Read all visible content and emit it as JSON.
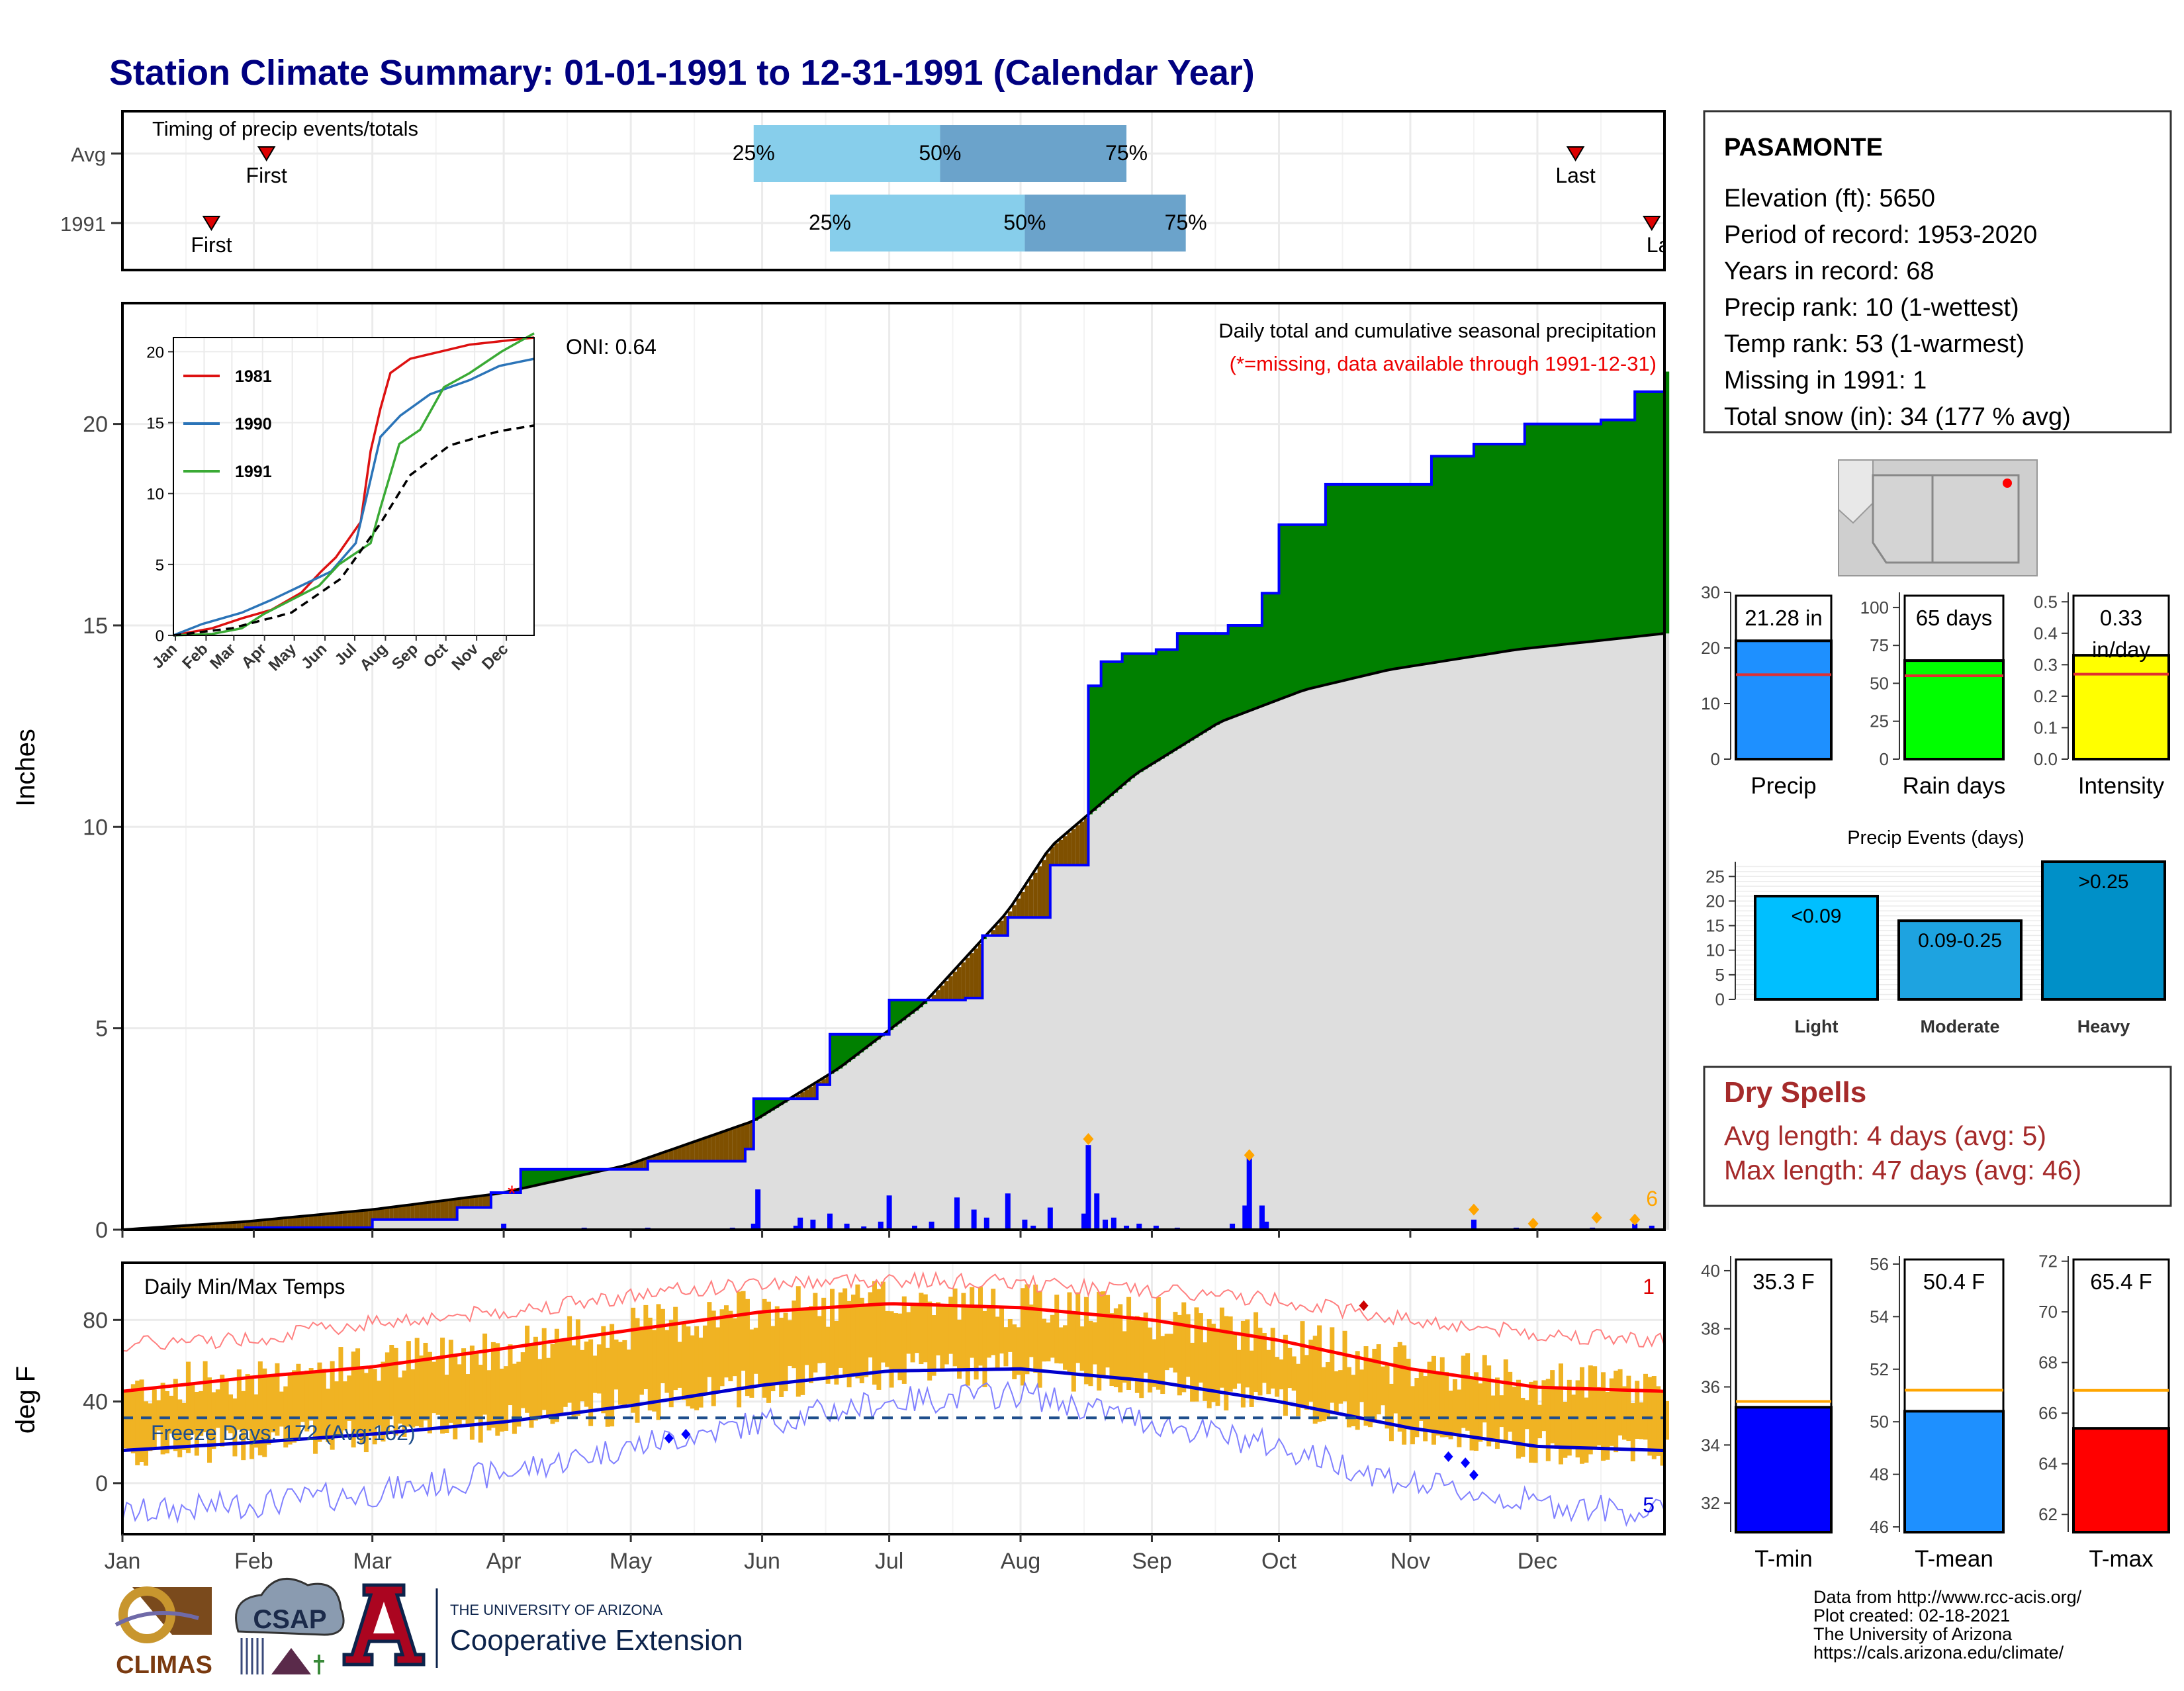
{
  "title": "Station Climate Summary: 01-01-1991 to 12-31-1991 (Calendar Year)",
  "timing": {
    "label": "Timing of precip events/totals",
    "rows": [
      {
        "name": "Avg",
        "first_doy": 35,
        "last_doy": 344,
        "q25_doy": 150,
        "q50_doy": 194,
        "q75_doy": 238
      },
      {
        "name": "1991",
        "first_doy": 22,
        "last_doy": 362,
        "q25_doy": 168,
        "q50_doy": 214,
        "q75_doy": 252
      }
    ],
    "pct_labels": [
      "25%",
      "50%",
      "75%"
    ],
    "first_label": "First",
    "last_label": "Last",
    "last_label_clipped": "La"
  },
  "station": {
    "name": "PASAMONTE",
    "lines": [
      "Elevation (ft): 5650",
      "Period of record: 1953-2020",
      "Years in record: 68",
      "Precip rank: 10 (1-wettest)",
      "Temp rank: 53 (1-warmest)",
      "Missing in 1991: 1",
      "Total snow (in): 34 (177 % avg)"
    ]
  },
  "main_panel": {
    "ylabel": "Inches",
    "title": "Daily total and cumulative seasonal precipitation",
    "subtitle": "(*=missing, data available through 1991-12-31)",
    "oni": "ONI: 0.64",
    "right_count": "6",
    "missing_marker": "*"
  },
  "temp_panel": {
    "ylabel": "deg F",
    "title": "Daily Min/Max Temps",
    "freeze": "Freeze Days: 172 (Avg:162)",
    "count_hi": "1",
    "count_lo": "5"
  },
  "months": [
    "Jan",
    "Feb",
    "Mar",
    "Apr",
    "May",
    "Jun",
    "Jul",
    "Aug",
    "Sep",
    "Oct",
    "Nov",
    "Dec"
  ],
  "dry_spells": {
    "title": "Dry Spells",
    "avg": "Avg length: 4 days (avg: 5)",
    "max": "Max length: 47 days (avg: 46)"
  },
  "precip_events_title": "Precip Events (days)",
  "footer": {
    "lines": [
      "Data from http://www.rcc-acis.org/",
      "Plot created: 02-18-2021",
      "The University of Arizona",
      "https://cals.arizona.edu/climate/"
    ],
    "climas": "CLIMAS",
    "csap": "CSAP",
    "ua_small": "THE UNIVERSITY OF ARIZONA",
    "ua_big": "Cooperative Extension",
    "ua_letter": "A"
  },
  "colors": {
    "title": "#000080",
    "green": "#008000",
    "brown": "#7f5000",
    "gray_fill": "#dedede",
    "blue_bar": "#0000ff",
    "temp_bar": "#f0b323",
    "tmax_line": "#ff0000",
    "tmin_line": "#0000cc",
    "q_light": "#87ceeb",
    "q_dark": "#6ba3cb",
    "dry_text": "#a52a2a",
    "missing": "#ff0000"
  },
  "chart_data": [
    {
      "id": "cumulative_precip",
      "type": "area",
      "title": "Daily total and cumulative seasonal precipitation",
      "ylabel": "Inches",
      "ylim": [
        0,
        23
      ],
      "yticks": [
        0,
        5,
        10,
        15,
        20
      ],
      "x_categories": [
        "Jan",
        "Feb",
        "Mar",
        "Apr",
        "May",
        "Jun",
        "Jul",
        "Aug",
        "Sep",
        "Oct",
        "Nov",
        "Dec"
      ],
      "cumulative_1991": [
        [
          1,
          0.0
        ],
        [
          30,
          0.05
        ],
        [
          60,
          0.25
        ],
        [
          80,
          0.55
        ],
        [
          88,
          0.92
        ],
        [
          95,
          1.5
        ],
        [
          125,
          1.7
        ],
        [
          148,
          2.0
        ],
        [
          150,
          3.25
        ],
        [
          165,
          3.6
        ],
        [
          168,
          4.85
        ],
        [
          182,
          5.7
        ],
        [
          200,
          5.75
        ],
        [
          204,
          7.3
        ],
        [
          210,
          7.75
        ],
        [
          220,
          9.05
        ],
        [
          228,
          9.05
        ],
        [
          229,
          13.5
        ],
        [
          232,
          14.1
        ],
        [
          237,
          14.3
        ],
        [
          245,
          14.4
        ],
        [
          250,
          14.8
        ],
        [
          262,
          15.0
        ],
        [
          270,
          15.8
        ],
        [
          274,
          17.5
        ],
        [
          285,
          18.5
        ],
        [
          300,
          18.5
        ],
        [
          310,
          19.2
        ],
        [
          320,
          19.5
        ],
        [
          332,
          20.0
        ],
        [
          340,
          20.0
        ],
        [
          350,
          20.1
        ],
        [
          358,
          20.8
        ],
        [
          365,
          21.3
        ]
      ],
      "avg_cumulative": [
        [
          1,
          0.0
        ],
        [
          30,
          0.2
        ],
        [
          60,
          0.5
        ],
        [
          90,
          0.9
        ],
        [
          120,
          1.6
        ],
        [
          150,
          2.7
        ],
        [
          170,
          4.0
        ],
        [
          190,
          5.6
        ],
        [
          210,
          7.9
        ],
        [
          220,
          9.5
        ],
        [
          240,
          11.3
        ],
        [
          260,
          12.6
        ],
        [
          280,
          13.4
        ],
        [
          300,
          13.9
        ],
        [
          330,
          14.4
        ],
        [
          365,
          14.8
        ]
      ],
      "daily_precip": [
        [
          91,
          0.15
        ],
        [
          110,
          0.05
        ],
        [
          125,
          0.05
        ],
        [
          145,
          0.05
        ],
        [
          150,
          0.15
        ],
        [
          151,
          1.0
        ],
        [
          160,
          0.1
        ],
        [
          161,
          0.3
        ],
        [
          164,
          0.25
        ],
        [
          168,
          0.4
        ],
        [
          172,
          0.15
        ],
        [
          176,
          0.08
        ],
        [
          180,
          0.2
        ],
        [
          182,
          0.85
        ],
        [
          188,
          0.1
        ],
        [
          192,
          0.2
        ],
        [
          198,
          0.8
        ],
        [
          202,
          0.5
        ],
        [
          205,
          0.3
        ],
        [
          210,
          0.9
        ],
        [
          214,
          0.25
        ],
        [
          216,
          0.1
        ],
        [
          220,
          0.55
        ],
        [
          228,
          0.4
        ],
        [
          229,
          2.1
        ],
        [
          231,
          0.9
        ],
        [
          233,
          0.25
        ],
        [
          235,
          0.3
        ],
        [
          238,
          0.1
        ],
        [
          241,
          0.15
        ],
        [
          245,
          0.1
        ],
        [
          250,
          0.05
        ],
        [
          263,
          0.15
        ],
        [
          266,
          0.6
        ],
        [
          267,
          1.8
        ],
        [
          270,
          0.6
        ],
        [
          271,
          0.2
        ],
        [
          320,
          0.25
        ],
        [
          330,
          0.05
        ],
        [
          348,
          0.05
        ],
        [
          358,
          0.15
        ],
        [
          362,
          0.1
        ]
      ],
      "snow_markers": [
        [
          229,
          2.25
        ],
        [
          267,
          1.85
        ],
        [
          320,
          0.5
        ],
        [
          334,
          0.15
        ],
        [
          349,
          0.3
        ],
        [
          358,
          0.25
        ]
      ],
      "missing_day": 92,
      "oni": 0.64
    },
    {
      "id": "inset_cumulative",
      "type": "line",
      "ylim": [
        0,
        21
      ],
      "yticks": [
        0,
        5,
        10,
        15,
        20
      ],
      "x_categories": [
        "Jan",
        "Feb",
        "Mar",
        "Apr",
        "May",
        "Jun",
        "Jul",
        "Aug",
        "Sep",
        "Oct",
        "Nov",
        "Dec"
      ],
      "series": [
        {
          "name": "1981",
          "color": "#dd1111",
          "points": [
            [
              1,
              0
            ],
            [
              40,
              0.5
            ],
            [
              70,
              1.2
            ],
            [
              100,
              1.8
            ],
            [
              130,
              3.0
            ],
            [
              150,
              4.5
            ],
            [
              165,
              5.5
            ],
            [
              190,
              8.0
            ],
            [
              200,
              13.0
            ],
            [
              210,
              16.0
            ],
            [
              220,
              18.5
            ],
            [
              240,
              19.5
            ],
            [
              270,
              20.0
            ],
            [
              300,
              20.5
            ],
            [
              365,
              21.0
            ]
          ]
        },
        {
          "name": "1990",
          "color": "#2b74b8",
          "points": [
            [
              1,
              0
            ],
            [
              30,
              0.8
            ],
            [
              70,
              1.6
            ],
            [
              100,
              2.5
            ],
            [
              130,
              3.5
            ],
            [
              160,
              4.5
            ],
            [
              185,
              6.5
            ],
            [
              200,
              11.0
            ],
            [
              210,
              14.0
            ],
            [
              230,
              15.5
            ],
            [
              260,
              17.0
            ],
            [
              300,
              18.0
            ],
            [
              330,
              19.0
            ],
            [
              365,
              19.5
            ]
          ]
        },
        {
          "name": "1991",
          "color": "#3aaa35",
          "points": [
            [
              1,
              0
            ],
            [
              40,
              0.1
            ],
            [
              70,
              0.5
            ],
            [
              92,
              1.5
            ],
            [
              148,
              3.5
            ],
            [
              168,
              5.0
            ],
            [
              200,
              6.5
            ],
            [
              210,
              9.0
            ],
            [
              229,
              13.5
            ],
            [
              250,
              14.5
            ],
            [
              274,
              17.5
            ],
            [
              300,
              18.5
            ],
            [
              332,
              20.0
            ],
            [
              365,
              21.3
            ]
          ]
        },
        {
          "name": "avg",
          "color": "#000000",
          "dashed": true,
          "points": [
            [
              1,
              0
            ],
            [
              60,
              0.5
            ],
            [
              120,
              1.6
            ],
            [
              170,
              4.0
            ],
            [
              210,
              7.9
            ],
            [
              240,
              11.3
            ],
            [
              280,
              13.4
            ],
            [
              330,
              14.4
            ],
            [
              365,
              14.8
            ]
          ]
        }
      ]
    },
    {
      "id": "daily_temps",
      "type": "line",
      "title": "Daily Min/Max Temps",
      "ylabel": "deg F",
      "ylim": [
        -25,
        108
      ],
      "yticks": [
        0,
        40,
        80
      ],
      "freeze_line": 32,
      "normal_max": [
        [
          1,
          45
        ],
        [
          32,
          52
        ],
        [
          60,
          57
        ],
        [
          91,
          66
        ],
        [
          121,
          75
        ],
        [
          152,
          84
        ],
        [
          182,
          88
        ],
        [
          213,
          86
        ],
        [
          244,
          80
        ],
        [
          274,
          70
        ],
        [
          305,
          56
        ],
        [
          335,
          47
        ],
        [
          365,
          45
        ]
      ],
      "normal_min": [
        [
          1,
          16
        ],
        [
          32,
          20
        ],
        [
          60,
          24
        ],
        [
          91,
          30
        ],
        [
          121,
          38
        ],
        [
          152,
          48
        ],
        [
          182,
          55
        ],
        [
          213,
          56
        ],
        [
          244,
          50
        ],
        [
          274,
          40
        ],
        [
          305,
          27
        ],
        [
          335,
          18
        ],
        [
          365,
          16
        ]
      ],
      "record_max": [
        [
          1,
          68
        ],
        [
          32,
          71
        ],
        [
          60,
          79
        ],
        [
          91,
          84
        ],
        [
          121,
          92
        ],
        [
          152,
          98
        ],
        [
          182,
          100
        ],
        [
          213,
          98
        ],
        [
          244,
          94
        ],
        [
          274,
          90
        ],
        [
          305,
          80
        ],
        [
          335,
          73
        ],
        [
          365,
          70
        ]
      ],
      "record_min": [
        [
          1,
          -15
        ],
        [
          32,
          -10
        ],
        [
          60,
          -5
        ],
        [
          91,
          5
        ],
        [
          121,
          18
        ],
        [
          152,
          30
        ],
        [
          182,
          40
        ],
        [
          213,
          44
        ],
        [
          244,
          30
        ],
        [
          274,
          18
        ],
        [
          305,
          0
        ],
        [
          335,
          -10
        ],
        [
          365,
          -15
        ]
      ],
      "low_markers": [
        [
          130,
          22
        ],
        [
          134,
          24
        ],
        [
          314,
          13
        ],
        [
          318,
          10
        ],
        [
          320,
          4
        ]
      ],
      "high_markers": [
        [
          294,
          87
        ]
      ]
    },
    {
      "id": "annual_precip",
      "type": "bar",
      "categories": [
        "Precip"
      ],
      "values": [
        21.28
      ],
      "label": "21.28 in",
      "avg": 15.2,
      "ylim": [
        0,
        30
      ],
      "yticks": [
        0,
        10,
        20,
        30
      ],
      "color": "#1e90ff"
    },
    {
      "id": "rain_days",
      "type": "bar",
      "categories": [
        "Rain days"
      ],
      "values": [
        65
      ],
      "label": "65 days",
      "avg": 55,
      "ylim": [
        0,
        110
      ],
      "yticks": [
        0,
        25,
        50,
        75,
        100
      ],
      "color": "#00ff00"
    },
    {
      "id": "intensity",
      "type": "bar",
      "categories": [
        "Intensity"
      ],
      "values": [
        0.33
      ],
      "label": "0.33",
      "label2": "in/day",
      "avg": 0.27,
      "ylim": [
        0,
        0.53
      ],
      "yticks": [
        "0.0",
        "0.1",
        "0.2",
        "0.3",
        "0.4",
        "0.5"
      ],
      "color": "#ffff00"
    },
    {
      "id": "precip_events",
      "type": "bar",
      "title": "Precip Events (days)",
      "categories": [
        "Light",
        "Moderate",
        "Heavy"
      ],
      "values": [
        21,
        16,
        28
      ],
      "labels": [
        "<0.09",
        "0.09-0.25",
        ">0.25"
      ],
      "colors": [
        "#00bfff",
        "#1ea3e0",
        "#0090c8"
      ],
      "ylim": [
        0,
        28
      ],
      "yticks": [
        0,
        5,
        10,
        15,
        20,
        25
      ]
    },
    {
      "id": "tmin",
      "type": "bar",
      "categories": [
        "T-min"
      ],
      "values": [
        35.3
      ],
      "label": "35.3 F",
      "avg": 35.5,
      "ylim": [
        31,
        40.5
      ],
      "yticks": [
        32,
        34,
        36,
        38,
        40
      ],
      "color": "#0000ff"
    },
    {
      "id": "tmean",
      "type": "bar",
      "categories": [
        "T-mean"
      ],
      "values": [
        50.4
      ],
      "label": "50.4 F",
      "avg": 51.2,
      "ylim": [
        45.8,
        56.3
      ],
      "yticks": [
        46,
        48,
        50,
        52,
        54,
        56
      ],
      "color": "#1e90ff"
    },
    {
      "id": "tmax",
      "type": "bar",
      "categories": [
        "T-max"
      ],
      "values": [
        65.4
      ],
      "label": "65.4 F",
      "avg": 66.9,
      "ylim": [
        61.3,
        72.2
      ],
      "yticks": [
        62,
        64,
        66,
        68,
        70,
        72
      ],
      "color": "#ff0000"
    }
  ]
}
